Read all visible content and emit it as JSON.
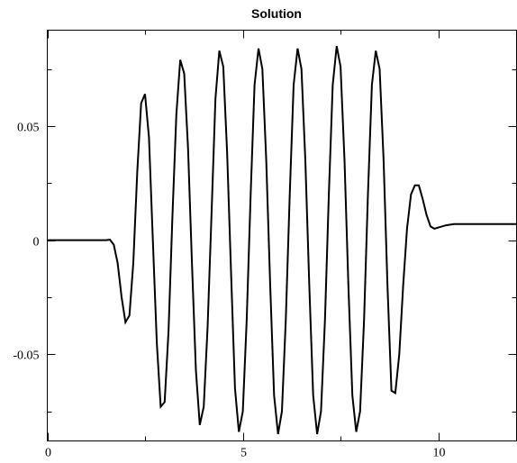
{
  "chart_data": {
    "type": "line",
    "title": "Solution",
    "xlabel": "",
    "ylabel": "",
    "xlim": [
      0,
      12
    ],
    "ylim": [
      -0.088,
      0.092
    ],
    "grid": false,
    "legend": "none",
    "x_ticks": [
      {
        "value": 0,
        "label": "0"
      },
      {
        "value": 5,
        "label": "5"
      },
      {
        "value": 10,
        "label": "10"
      }
    ],
    "y_ticks": [
      {
        "value": 0.05,
        "label": "0.05"
      },
      {
        "value": 0,
        "label": "0"
      },
      {
        "value": -0.05,
        "label": "-0.05"
      }
    ],
    "x_minor_ticks": [
      2.5,
      7.5
    ],
    "y_minor_ticks": [
      0.075,
      0.025,
      -0.025,
      -0.075
    ],
    "series": [
      {
        "color": "#000000",
        "points": [
          [
            0,
            0
          ],
          [
            1.5,
            0
          ],
          [
            1.6,
            0.0002
          ],
          [
            1.7,
            -0.002
          ],
          [
            1.8,
            -0.01
          ],
          [
            1.9,
            -0.025
          ],
          [
            2.0,
            -0.036
          ],
          [
            2.1,
            -0.033
          ],
          [
            2.2,
            -0.01
          ],
          [
            2.3,
            0.03
          ],
          [
            2.4,
            0.06
          ],
          [
            2.5,
            0.064
          ],
          [
            2.6,
            0.045
          ],
          [
            2.7,
            0.0
          ],
          [
            2.8,
            -0.045
          ],
          [
            2.9,
            -0.073
          ],
          [
            3.0,
            -0.071
          ],
          [
            3.1,
            -0.04
          ],
          [
            3.2,
            0.01
          ],
          [
            3.3,
            0.055
          ],
          [
            3.4,
            0.079
          ],
          [
            3.5,
            0.073
          ],
          [
            3.6,
            0.04
          ],
          [
            3.7,
            -0.01
          ],
          [
            3.8,
            -0.057
          ],
          [
            3.9,
            -0.081
          ],
          [
            4.0,
            -0.073
          ],
          [
            4.1,
            -0.038
          ],
          [
            4.2,
            0.012
          ],
          [
            4.3,
            0.062
          ],
          [
            4.4,
            0.083
          ],
          [
            4.5,
            0.076
          ],
          [
            4.6,
            0.038
          ],
          [
            4.7,
            -0.015
          ],
          [
            4.8,
            -0.065
          ],
          [
            4.9,
            -0.084
          ],
          [
            5.0,
            -0.075
          ],
          [
            5.1,
            -0.035
          ],
          [
            5.2,
            0.02
          ],
          [
            5.3,
            0.068
          ],
          [
            5.4,
            0.084
          ],
          [
            5.5,
            0.075
          ],
          [
            5.6,
            0.035
          ],
          [
            5.7,
            -0.02
          ],
          [
            5.8,
            -0.068
          ],
          [
            5.9,
            -0.085
          ],
          [
            6.0,
            -0.075
          ],
          [
            6.1,
            -0.035
          ],
          [
            6.2,
            0.02
          ],
          [
            6.3,
            0.068
          ],
          [
            6.4,
            0.084
          ],
          [
            6.5,
            0.075
          ],
          [
            6.6,
            0.035
          ],
          [
            6.7,
            -0.02
          ],
          [
            6.8,
            -0.068
          ],
          [
            6.9,
            -0.085
          ],
          [
            7.0,
            -0.075
          ],
          [
            7.1,
            -0.035
          ],
          [
            7.2,
            0.02
          ],
          [
            7.3,
            0.068
          ],
          [
            7.4,
            0.085
          ],
          [
            7.5,
            0.076
          ],
          [
            7.6,
            0.035
          ],
          [
            7.7,
            -0.02
          ],
          [
            7.8,
            -0.068
          ],
          [
            7.9,
            -0.084
          ],
          [
            8.0,
            -0.075
          ],
          [
            8.1,
            -0.035
          ],
          [
            8.2,
            0.02
          ],
          [
            8.3,
            0.068
          ],
          [
            8.4,
            0.083
          ],
          [
            8.5,
            0.075
          ],
          [
            8.6,
            0.035
          ],
          [
            8.7,
            -0.02
          ],
          [
            8.8,
            -0.066
          ],
          [
            8.9,
            -0.067
          ],
          [
            9.0,
            -0.05
          ],
          [
            9.1,
            -0.02
          ],
          [
            9.2,
            0.005
          ],
          [
            9.3,
            0.02
          ],
          [
            9.4,
            0.024
          ],
          [
            9.5,
            0.024
          ],
          [
            9.6,
            0.018
          ],
          [
            9.7,
            0.011
          ],
          [
            9.8,
            0.006
          ],
          [
            9.9,
            0.005
          ],
          [
            10.0,
            0.0055
          ],
          [
            10.2,
            0.0065
          ],
          [
            10.4,
            0.007
          ],
          [
            10.8,
            0.007
          ],
          [
            12.0,
            0.007
          ]
        ]
      }
    ]
  }
}
